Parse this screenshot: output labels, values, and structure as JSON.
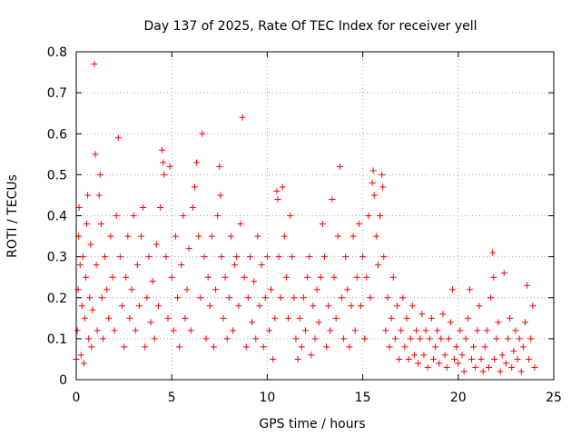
{
  "chart_data": {
    "type": "scatter",
    "title": "Day 137 of 2025, Rate Of TEC Index for receiver yell",
    "xlabel": "GPS time / hours",
    "ylabel": "ROTI / TECUs",
    "xlim": [
      0,
      25
    ],
    "ylim": [
      0,
      0.8
    ],
    "xticks": [
      0,
      5,
      10,
      15,
      20,
      25
    ],
    "yticks": [
      0,
      0.1,
      0.2,
      0.3,
      0.4,
      0.5,
      0.6,
      0.7,
      0.8
    ],
    "xtick_labels": [
      "0",
      "5",
      "10",
      "15",
      "20",
      "25"
    ],
    "ytick_labels": [
      "0",
      "0.1",
      "0.2",
      "0.3",
      "0.4",
      "0.5",
      "0.6",
      "0.7",
      "0.8"
    ],
    "grid": true,
    "marker": "+",
    "color": "#ff0000",
    "series": [
      {
        "name": "ROTI",
        "points": [
          [
            0.0,
            0.05
          ],
          [
            0.05,
            0.12
          ],
          [
            0.1,
            0.22
          ],
          [
            0.12,
            0.35
          ],
          [
            0.15,
            0.42
          ],
          [
            0.2,
            0.28
          ],
          [
            0.25,
            0.06
          ],
          [
            0.3,
            0.18
          ],
          [
            0.35,
            0.3
          ],
          [
            0.4,
            0.04
          ],
          [
            0.45,
            0.15
          ],
          [
            0.5,
            0.25
          ],
          [
            0.55,
            0.38
          ],
          [
            0.6,
            0.45
          ],
          [
            0.65,
            0.1
          ],
          [
            0.7,
            0.2
          ],
          [
            0.75,
            0.33
          ],
          [
            0.8,
            0.08
          ],
          [
            0.85,
            0.17
          ],
          [
            0.95,
            0.77
          ],
          [
            1.0,
            0.55
          ],
          [
            1.05,
            0.28
          ],
          [
            1.1,
            0.12
          ],
          [
            1.2,
            0.45
          ],
          [
            1.25,
            0.5
          ],
          [
            1.3,
            0.38
          ],
          [
            1.35,
            0.2
          ],
          [
            1.4,
            0.1
          ],
          [
            1.5,
            0.3
          ],
          [
            1.6,
            0.22
          ],
          [
            1.7,
            0.15
          ],
          [
            1.8,
            0.35
          ],
          [
            1.9,
            0.25
          ],
          [
            2.0,
            0.12
          ],
          [
            2.1,
            0.4
          ],
          [
            2.2,
            0.59
          ],
          [
            2.3,
            0.3
          ],
          [
            2.4,
            0.18
          ],
          [
            2.5,
            0.08
          ],
          [
            2.6,
            0.25
          ],
          [
            2.7,
            0.35
          ],
          [
            2.8,
            0.15
          ],
          [
            2.9,
            0.22
          ],
          [
            3.0,
            0.4
          ],
          [
            3.1,
            0.12
          ],
          [
            3.2,
            0.28
          ],
          [
            3.3,
            0.18
          ],
          [
            3.4,
            0.35
          ],
          [
            3.5,
            0.42
          ],
          [
            3.6,
            0.08
          ],
          [
            3.7,
            0.2
          ],
          [
            3.8,
            0.3
          ],
          [
            3.9,
            0.14
          ],
          [
            4.0,
            0.24
          ],
          [
            4.1,
            0.1
          ],
          [
            4.2,
            0.33
          ],
          [
            4.3,
            0.18
          ],
          [
            4.4,
            0.42
          ],
          [
            4.5,
            0.56
          ],
          [
            4.55,
            0.53
          ],
          [
            4.6,
            0.5
          ],
          [
            4.7,
            0.3
          ],
          [
            4.8,
            0.15
          ],
          [
            4.9,
            0.52
          ],
          [
            5.0,
            0.25
          ],
          [
            5.1,
            0.12
          ],
          [
            5.2,
            0.35
          ],
          [
            5.3,
            0.2
          ],
          [
            5.4,
            0.08
          ],
          [
            5.5,
            0.28
          ],
          [
            5.6,
            0.4
          ],
          [
            5.7,
            0.15
          ],
          [
            5.8,
            0.22
          ],
          [
            5.9,
            0.32
          ],
          [
            6.0,
            0.12
          ],
          [
            6.1,
            0.42
          ],
          [
            6.2,
            0.47
          ],
          [
            6.3,
            0.53
          ],
          [
            6.4,
            0.35
          ],
          [
            6.5,
            0.2
          ],
          [
            6.6,
            0.6
          ],
          [
            6.7,
            0.3
          ],
          [
            6.8,
            0.1
          ],
          [
            6.9,
            0.25
          ],
          [
            7.0,
            0.18
          ],
          [
            7.1,
            0.35
          ],
          [
            7.2,
            0.08
          ],
          [
            7.3,
            0.22
          ],
          [
            7.4,
            0.4
          ],
          [
            7.5,
            0.52
          ],
          [
            7.55,
            0.45
          ],
          [
            7.6,
            0.3
          ],
          [
            7.7,
            0.15
          ],
          [
            7.8,
            0.25
          ],
          [
            7.9,
            0.1
          ],
          [
            8.0,
            0.2
          ],
          [
            8.1,
            0.35
          ],
          [
            8.2,
            0.12
          ],
          [
            8.3,
            0.28
          ],
          [
            8.4,
            0.3
          ],
          [
            8.5,
            0.18
          ],
          [
            8.6,
            0.38
          ],
          [
            8.7,
            0.64
          ],
          [
            8.8,
            0.25
          ],
          [
            8.9,
            0.08
          ],
          [
            9.0,
            0.2
          ],
          [
            9.1,
            0.3
          ],
          [
            9.2,
            0.14
          ],
          [
            9.3,
            0.24
          ],
          [
            9.4,
            0.1
          ],
          [
            9.5,
            0.35
          ],
          [
            9.6,
            0.18
          ],
          [
            9.7,
            0.28
          ],
          [
            9.8,
            0.08
          ],
          [
            9.9,
            0.2
          ],
          [
            10.0,
            0.3
          ],
          [
            10.1,
            0.12
          ],
          [
            10.2,
            0.22
          ],
          [
            10.3,
            0.05
          ],
          [
            10.4,
            0.15
          ],
          [
            10.5,
            0.46
          ],
          [
            10.55,
            0.44
          ],
          [
            10.6,
            0.3
          ],
          [
            10.7,
            0.2
          ],
          [
            10.8,
            0.47
          ],
          [
            10.9,
            0.35
          ],
          [
            11.0,
            0.25
          ],
          [
            11.1,
            0.15
          ],
          [
            11.2,
            0.4
          ],
          [
            11.3,
            0.3
          ],
          [
            11.4,
            0.2
          ],
          [
            11.5,
            0.1
          ],
          [
            11.6,
            0.05
          ],
          [
            11.7,
            0.15
          ],
          [
            11.8,
            0.08
          ],
          [
            11.9,
            0.2
          ],
          [
            12.0,
            0.12
          ],
          [
            12.1,
            0.25
          ],
          [
            12.2,
            0.3
          ],
          [
            12.3,
            0.06
          ],
          [
            12.4,
            0.18
          ],
          [
            12.5,
            0.1
          ],
          [
            12.6,
            0.22
          ],
          [
            12.7,
            0.14
          ],
          [
            12.8,
            0.25
          ],
          [
            12.9,
            0.38
          ],
          [
            13.0,
            0.3
          ],
          [
            13.1,
            0.08
          ],
          [
            13.2,
            0.18
          ],
          [
            13.3,
            0.12
          ],
          [
            13.4,
            0.44
          ],
          [
            13.5,
            0.25
          ],
          [
            13.6,
            0.15
          ],
          [
            13.7,
            0.35
          ],
          [
            13.8,
            0.52
          ],
          [
            13.9,
            0.2
          ],
          [
            14.0,
            0.1
          ],
          [
            14.1,
            0.3
          ],
          [
            14.2,
            0.22
          ],
          [
            14.3,
            0.08
          ],
          [
            14.4,
            0.18
          ],
          [
            14.5,
            0.35
          ],
          [
            14.6,
            0.12
          ],
          [
            14.7,
            0.25
          ],
          [
            14.8,
            0.38
          ],
          [
            14.9,
            0.18
          ],
          [
            15.0,
            0.3
          ],
          [
            15.1,
            0.1
          ],
          [
            15.2,
            0.25
          ],
          [
            15.3,
            0.4
          ],
          [
            15.4,
            0.2
          ],
          [
            15.5,
            0.48
          ],
          [
            15.55,
            0.51
          ],
          [
            15.6,
            0.45
          ],
          [
            15.7,
            0.35
          ],
          [
            15.8,
            0.28
          ],
          [
            15.9,
            0.4
          ],
          [
            16.0,
            0.5
          ],
          [
            16.05,
            0.47
          ],
          [
            16.1,
            0.3
          ],
          [
            16.2,
            0.12
          ],
          [
            16.3,
            0.2
          ],
          [
            16.4,
            0.08
          ],
          [
            16.5,
            0.15
          ],
          [
            16.6,
            0.25
          ],
          [
            16.7,
            0.1
          ],
          [
            16.8,
            0.18
          ],
          [
            16.9,
            0.05
          ],
          [
            17.0,
            0.12
          ],
          [
            17.1,
            0.2
          ],
          [
            17.2,
            0.08
          ],
          [
            17.3,
            0.15
          ],
          [
            17.4,
            0.05
          ],
          [
            17.5,
            0.1
          ],
          [
            17.6,
            0.18
          ],
          [
            17.7,
            0.06
          ],
          [
            17.8,
            0.12
          ],
          [
            17.9,
            0.04
          ],
          [
            18.0,
            0.1
          ],
          [
            18.1,
            0.16
          ],
          [
            18.2,
            0.06
          ],
          [
            18.3,
            0.12
          ],
          [
            18.4,
            0.03
          ],
          [
            18.5,
            0.1
          ],
          [
            18.6,
            0.15
          ],
          [
            18.7,
            0.05
          ],
          [
            18.8,
            0.08
          ],
          [
            18.9,
            0.12
          ],
          [
            19.0,
            0.04
          ],
          [
            19.1,
            0.1
          ],
          [
            19.2,
            0.16
          ],
          [
            19.3,
            0.06
          ],
          [
            19.4,
            0.03
          ],
          [
            19.5,
            0.1
          ],
          [
            19.6,
            0.14
          ],
          [
            19.7,
            0.22
          ],
          [
            19.8,
            0.05
          ],
          [
            19.9,
            0.08
          ],
          [
            20.0,
            0.04
          ],
          [
            20.1,
            0.12
          ],
          [
            20.2,
            0.06
          ],
          [
            20.3,
            0.02
          ],
          [
            20.4,
            0.1
          ],
          [
            20.5,
            0.15
          ],
          [
            20.6,
            0.22
          ],
          [
            20.7,
            0.05
          ],
          [
            20.8,
            0.08
          ],
          [
            20.9,
            0.03
          ],
          [
            21.0,
            0.12
          ],
          [
            21.1,
            0.18
          ],
          [
            21.2,
            0.05
          ],
          [
            21.3,
            0.02
          ],
          [
            21.4,
            0.08
          ],
          [
            21.5,
            0.12
          ],
          [
            21.6,
            0.03
          ],
          [
            21.7,
            0.2
          ],
          [
            21.8,
            0.31
          ],
          [
            21.85,
            0.25
          ],
          [
            21.9,
            0.05
          ],
          [
            22.0,
            0.1
          ],
          [
            22.1,
            0.14
          ],
          [
            22.2,
            0.02
          ],
          [
            22.3,
            0.06
          ],
          [
            22.4,
            0.26
          ],
          [
            22.5,
            0.04
          ],
          [
            22.6,
            0.1
          ],
          [
            22.7,
            0.15
          ],
          [
            22.8,
            0.03
          ],
          [
            22.9,
            0.07
          ],
          [
            23.0,
            0.12
          ],
          [
            23.1,
            0.05
          ],
          [
            23.2,
            0.1
          ],
          [
            23.3,
            0.02
          ],
          [
            23.4,
            0.08
          ],
          [
            23.5,
            0.14
          ],
          [
            23.6,
            0.23
          ],
          [
            23.7,
            0.05
          ],
          [
            23.8,
            0.1
          ],
          [
            23.9,
            0.18
          ],
          [
            24.0,
            0.03
          ]
        ]
      }
    ]
  }
}
